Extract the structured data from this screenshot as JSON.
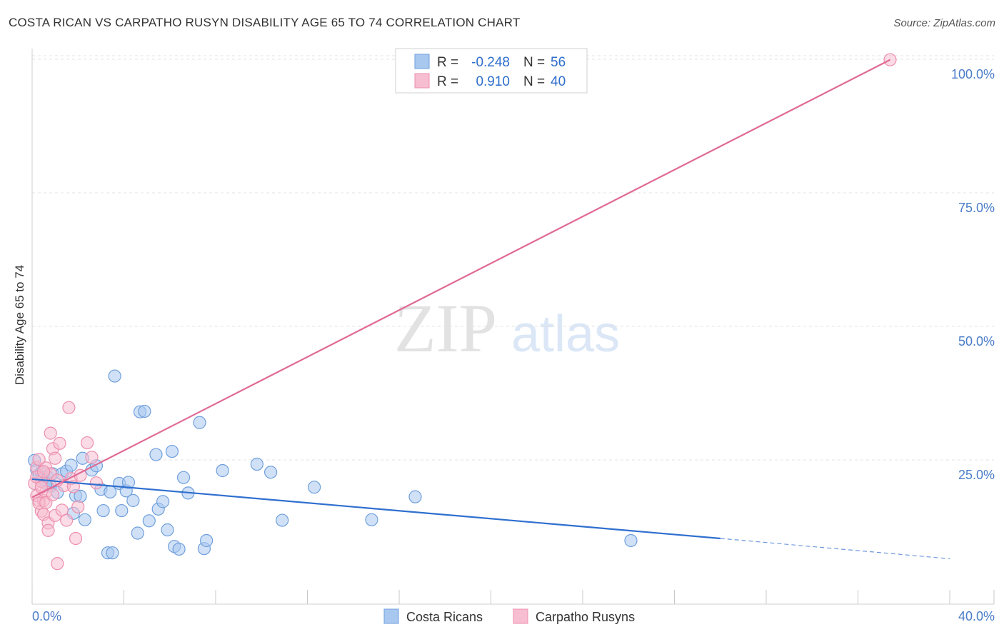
{
  "title": "COSTA RICAN VS CARPATHO RUSYN DISABILITY AGE 65 TO 74 CORRELATION CHART",
  "source": "Source: ZipAtlas.com",
  "watermark": {
    "zip": "ZIP",
    "atlas": "atlas"
  },
  "colors": {
    "blue_fill": "#a9c8f0",
    "blue_stroke": "#6f9fdc",
    "blue_line": "#2f6fcf",
    "pink_fill": "#f7bdd0",
    "pink_stroke": "#ec8fae",
    "pink_line": "#e06a95",
    "axis_text": "#4a7cc9",
    "grid": "#e3e3e3"
  },
  "legend": {
    "rows": [
      {
        "r_label": "R =",
        "r_value": "-0.248",
        "n_label": "N =",
        "n_value": "56"
      },
      {
        "r_label": "R =",
        "r_value": "0.910",
        "n_label": "N =",
        "n_value": "40"
      }
    ]
  },
  "chart_data": {
    "type": "scatter",
    "title": "COSTA RICAN VS CARPATHO RUSYN DISABILITY AGE 65 TO 74 CORRELATION CHART",
    "xlabel": "",
    "ylabel": "Disability Age 65 to 74",
    "xlim": [
      0,
      40
    ],
    "ylim": [
      -2,
      102
    ],
    "x_tick_labels": [
      "0.0%",
      "40.0%"
    ],
    "y_ticks": [
      25,
      50,
      75,
      100
    ],
    "y_tick_labels": [
      "25.0%",
      "50.0%",
      "75.0%",
      "100.0%"
    ],
    "grid": true,
    "legend_position": "top-center",
    "series": [
      {
        "name": "Costa Ricans",
        "color": "#a9c8f0",
        "r": -0.248,
        "n": 56,
        "points": [
          [
            0.1,
            24.9
          ],
          [
            0.2,
            23.1
          ],
          [
            0.3,
            22.1
          ],
          [
            0.4,
            22.7
          ],
          [
            0.5,
            21.7
          ],
          [
            0.6,
            21.1
          ],
          [
            0.7,
            21.7
          ],
          [
            0.8,
            20.1
          ],
          [
            0.9,
            22.4
          ],
          [
            1.1,
            18.9
          ],
          [
            1.3,
            22.4
          ],
          [
            1.5,
            22.9
          ],
          [
            1.7,
            24.0
          ],
          [
            1.9,
            18.3
          ],
          [
            2.1,
            18.2
          ],
          [
            2.2,
            25.3
          ],
          [
            2.3,
            13.8
          ],
          [
            2.6,
            23.1
          ],
          [
            2.8,
            23.9
          ],
          [
            3.0,
            19.5
          ],
          [
            3.1,
            15.5
          ],
          [
            3.3,
            7.6
          ],
          [
            3.4,
            19.0
          ],
          [
            3.5,
            7.6
          ],
          [
            3.6,
            40.7
          ],
          [
            3.8,
            20.6
          ],
          [
            3.9,
            15.5
          ],
          [
            4.1,
            19.2
          ],
          [
            4.2,
            20.8
          ],
          [
            4.4,
            17.4
          ],
          [
            4.6,
            11.3
          ],
          [
            4.7,
            34.0
          ],
          [
            4.9,
            34.1
          ],
          [
            5.1,
            13.6
          ],
          [
            5.4,
            26.0
          ],
          [
            5.5,
            15.8
          ],
          [
            5.7,
            17.2
          ],
          [
            5.9,
            11.9
          ],
          [
            6.1,
            26.6
          ],
          [
            6.2,
            8.8
          ],
          [
            6.4,
            8.3
          ],
          [
            6.6,
            21.7
          ],
          [
            6.8,
            18.8
          ],
          [
            7.3,
            32.0
          ],
          [
            7.5,
            8.4
          ],
          [
            7.6,
            9.9
          ],
          [
            8.3,
            23.0
          ],
          [
            9.8,
            24.2
          ],
          [
            10.4,
            22.7
          ],
          [
            10.9,
            13.7
          ],
          [
            12.3,
            19.9
          ],
          [
            14.8,
            13.8
          ],
          [
            16.7,
            18.1
          ],
          [
            26.1,
            9.9
          ],
          [
            0.6,
            20.6
          ],
          [
            1.8,
            15.0
          ]
        ]
      },
      {
        "name": "Carpatho Rusyns",
        "color": "#f7bdd0",
        "r": 0.91,
        "n": 40,
        "points": [
          [
            0.1,
            20.6
          ],
          [
            0.2,
            18.3
          ],
          [
            0.2,
            23.6
          ],
          [
            0.3,
            17.4
          ],
          [
            0.3,
            25.1
          ],
          [
            0.4,
            15.4
          ],
          [
            0.4,
            21.0
          ],
          [
            0.5,
            17.4
          ],
          [
            0.5,
            14.8
          ],
          [
            0.6,
            19.0
          ],
          [
            0.6,
            23.5
          ],
          [
            0.7,
            13.2
          ],
          [
            0.7,
            11.8
          ],
          [
            0.8,
            30.0
          ],
          [
            0.8,
            22.4
          ],
          [
            0.9,
            27.1
          ],
          [
            1.0,
            14.6
          ],
          [
            1.0,
            25.3
          ],
          [
            1.1,
            5.6
          ],
          [
            1.2,
            28.1
          ],
          [
            1.3,
            15.6
          ],
          [
            1.4,
            20.2
          ],
          [
            1.5,
            13.7
          ],
          [
            1.6,
            34.8
          ],
          [
            1.7,
            21.5
          ],
          [
            1.8,
            20.0
          ],
          [
            1.9,
            10.3
          ],
          [
            2.0,
            16.2
          ],
          [
            2.1,
            22.1
          ],
          [
            2.4,
            28.2
          ],
          [
            2.6,
            25.5
          ],
          [
            2.8,
            20.7
          ],
          [
            37.4,
            99.9
          ],
          [
            0.2,
            21.8
          ],
          [
            0.3,
            16.9
          ],
          [
            0.4,
            19.9
          ],
          [
            0.5,
            22.8
          ],
          [
            0.6,
            17.0
          ],
          [
            0.9,
            18.5
          ],
          [
            1.1,
            21.2
          ]
        ]
      }
    ],
    "trendlines": [
      {
        "series": "Costa Ricans",
        "x0": 0,
        "y0": 21.4,
        "x1": 30,
        "y1": 10.3,
        "dashed_to_x": 40,
        "dashed_to_y": 6.5
      },
      {
        "series": "Carpatho Rusyns",
        "x0": 0,
        "y0": 18.0,
        "x1": 37.4,
        "y1": 99.9
      }
    ]
  }
}
